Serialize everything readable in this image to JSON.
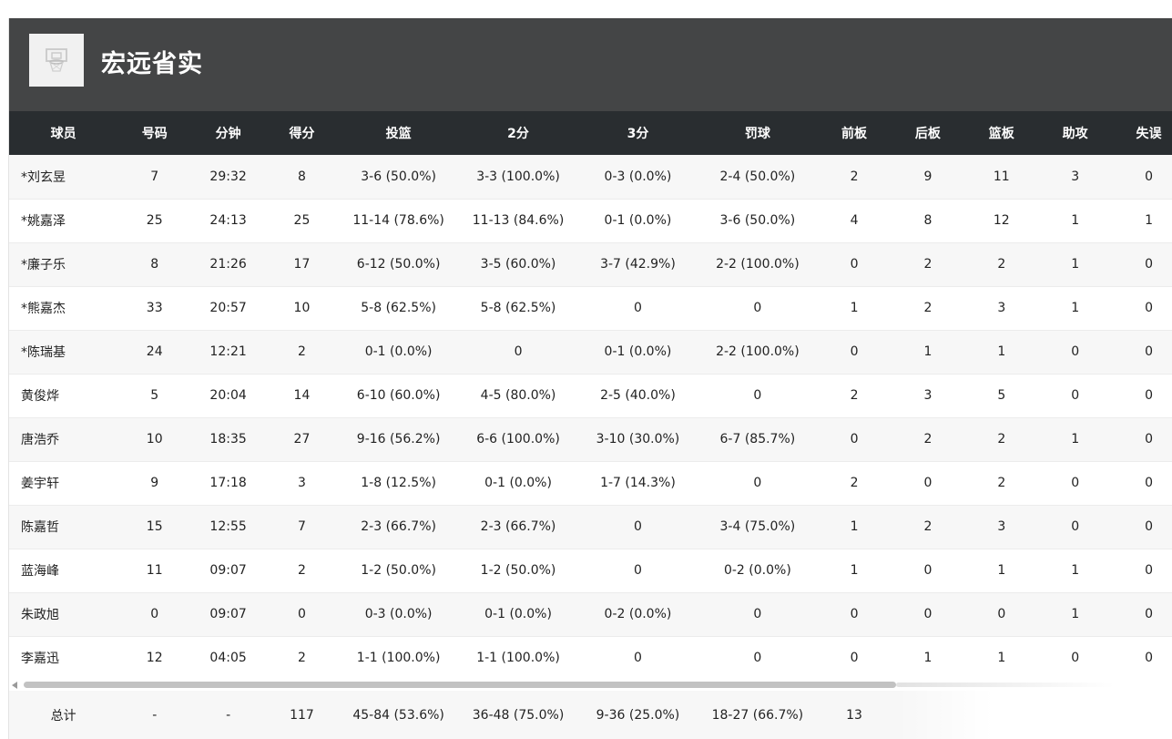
{
  "team": {
    "name": "宏远省实",
    "logo_icon": "basketball-hoop-icon"
  },
  "table": {
    "columns": [
      "球员",
      "号码",
      "分钟",
      "得分",
      "投篮",
      "2分",
      "3分",
      "罚球",
      "前板",
      "后板",
      "篮板",
      "助攻",
      "失误"
    ],
    "rows": [
      [
        "*刘玄昱",
        "7",
        "29:32",
        "8",
        "3-6 (50.0%)",
        "3-3 (100.0%)",
        "0-3 (0.0%)",
        "2-4 (50.0%)",
        "2",
        "9",
        "11",
        "3",
        "0"
      ],
      [
        "*姚嘉泽",
        "25",
        "24:13",
        "25",
        "11-14 (78.6%)",
        "11-13 (84.6%)",
        "0-1 (0.0%)",
        "3-6 (50.0%)",
        "4",
        "8",
        "12",
        "1",
        "1"
      ],
      [
        "*廉子乐",
        "8",
        "21:26",
        "17",
        "6-12 (50.0%)",
        "3-5 (60.0%)",
        "3-7 (42.9%)",
        "2-2 (100.0%)",
        "0",
        "2",
        "2",
        "1",
        "0"
      ],
      [
        "*熊嘉杰",
        "33",
        "20:57",
        "10",
        "5-8 (62.5%)",
        "5-8 (62.5%)",
        "0",
        "0",
        "1",
        "2",
        "3",
        "1",
        "0"
      ],
      [
        "*陈瑞基",
        "24",
        "12:21",
        "2",
        "0-1 (0.0%)",
        "0",
        "0-1 (0.0%)",
        "2-2 (100.0%)",
        "0",
        "1",
        "1",
        "0",
        "0"
      ],
      [
        "黄俊烨",
        "5",
        "20:04",
        "14",
        "6-10 (60.0%)",
        "4-5 (80.0%)",
        "2-5 (40.0%)",
        "0",
        "2",
        "3",
        "5",
        "0",
        "0"
      ],
      [
        "唐浩乔",
        "10",
        "18:35",
        "27",
        "9-16 (56.2%)",
        "6-6 (100.0%)",
        "3-10 (30.0%)",
        "6-7 (85.7%)",
        "0",
        "2",
        "2",
        "1",
        "0"
      ],
      [
        "姜宇轩",
        "9",
        "17:18",
        "3",
        "1-8 (12.5%)",
        "0-1 (0.0%)",
        "1-7 (14.3%)",
        "0",
        "2",
        "0",
        "2",
        "0",
        "0"
      ],
      [
        "陈嘉哲",
        "15",
        "12:55",
        "7",
        "2-3 (66.7%)",
        "2-3 (66.7%)",
        "0",
        "3-4 (75.0%)",
        "1",
        "2",
        "3",
        "0",
        "0"
      ],
      [
        "蓝海峰",
        "11",
        "09:07",
        "2",
        "1-2 (50.0%)",
        "1-2 (50.0%)",
        "0",
        "0-2 (0.0%)",
        "1",
        "0",
        "1",
        "1",
        "0"
      ],
      [
        "朱政旭",
        "0",
        "09:07",
        "0",
        "0-3 (0.0%)",
        "0-1 (0.0%)",
        "0-2 (0.0%)",
        "0",
        "0",
        "0",
        "0",
        "1",
        "0"
      ],
      [
        "李嘉迅",
        "12",
        "04:05",
        "2",
        "1-1 (100.0%)",
        "1-1 (100.0%)",
        "0",
        "0",
        "0",
        "1",
        "1",
        "0",
        "0"
      ]
    ],
    "totals": [
      "总计",
      "-",
      "-",
      "117",
      "45-84 (53.6%)",
      "36-48 (75.0%)",
      "9-36 (25.0%)",
      "18-27 (66.7%)",
      "13"
    ]
  },
  "scrollbar": {
    "left_arrow_icon": "chevron-left-icon"
  }
}
